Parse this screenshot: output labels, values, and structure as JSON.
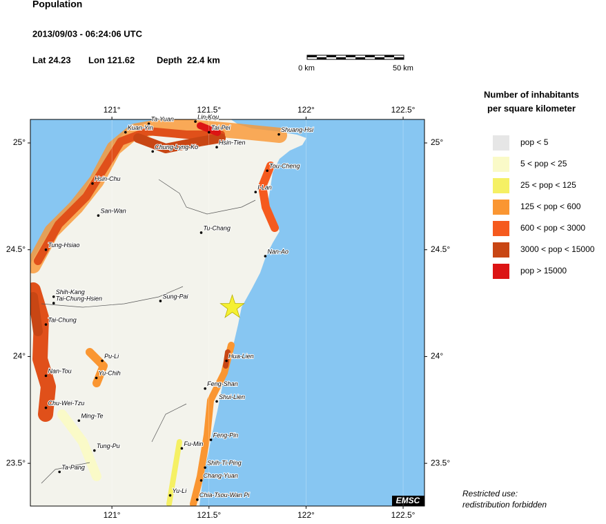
{
  "header": {
    "title": "Population",
    "datetime": "2013/09/03 - 06:24:06 UTC",
    "lat": "Lat 24.23",
    "lon": "Lon 121.62",
    "depth": "Depth  22.4 km"
  },
  "scale_bar": {
    "start": "0 km",
    "end": "50 km"
  },
  "map": {
    "xlim": [
      120.58,
      122.61
    ],
    "ylim": [
      23.3,
      25.11
    ],
    "xticks": [
      {
        "value": 121,
        "label": "121°"
      },
      {
        "value": 121.5,
        "label": "121.5°"
      },
      {
        "value": 122,
        "label": "122°"
      },
      {
        "value": 122.5,
        "label": "122.5°"
      }
    ],
    "yticks": [
      {
        "value": 23.5,
        "label": "23.5°"
      },
      {
        "value": 24,
        "label": "24°"
      },
      {
        "value": 24.5,
        "label": "24.5°"
      },
      {
        "value": 25,
        "label": "25°"
      }
    ],
    "epicenter": {
      "lon": 121.62,
      "lat": 24.23,
      "color": "#f5f032"
    },
    "cities": [
      {
        "name": "Ta-Yuan",
        "lon": 121.19,
        "lat": 25.09
      },
      {
        "name": "Lin-Kou",
        "lon": 121.43,
        "lat": 25.1
      },
      {
        "name": "Kuan-Yin",
        "lon": 121.07,
        "lat": 25.05
      },
      {
        "name": "Tai-Pei",
        "lon": 121.5,
        "lat": 25.05
      },
      {
        "name": "Shuang-Hsi",
        "lon": 121.86,
        "lat": 25.04
      },
      {
        "name": "Chung-Lyng-Ko",
        "lon": 121.21,
        "lat": 24.96
      },
      {
        "name": "Hsin-Tien",
        "lon": 121.54,
        "lat": 24.98
      },
      {
        "name": "Tou-Cheng",
        "lon": 121.8,
        "lat": 24.87
      },
      {
        "name": "Hsin-Chu",
        "lon": 120.9,
        "lat": 24.81
      },
      {
        "name": "I-Lan",
        "lon": 121.74,
        "lat": 24.77
      },
      {
        "name": "San-Wan",
        "lon": 120.93,
        "lat": 24.66
      },
      {
        "name": "Tu-Chang",
        "lon": 121.46,
        "lat": 24.58
      },
      {
        "name": "Tung-Hsiao",
        "lon": 120.66,
        "lat": 24.5
      },
      {
        "name": "Nan-Ao",
        "lon": 121.79,
        "lat": 24.47
      },
      {
        "name": "Shih-Kang",
        "lon": 120.7,
        "lat": 24.28
      },
      {
        "name": "Tai-Chung-Hsien",
        "lon": 120.7,
        "lat": 24.25
      },
      {
        "name": "Sung-Pai",
        "lon": 121.25,
        "lat": 24.26
      },
      {
        "name": "Tai-Chung",
        "lon": 120.66,
        "lat": 24.15
      },
      {
        "name": "Pu-Li",
        "lon": 120.95,
        "lat": 23.98
      },
      {
        "name": "Hua-Lien",
        "lon": 121.59,
        "lat": 23.98
      },
      {
        "name": "Nan-Tou",
        "lon": 120.66,
        "lat": 23.91
      },
      {
        "name": "Yu-Chih",
        "lon": 120.92,
        "lat": 23.9
      },
      {
        "name": "Feng-Shan",
        "lon": 121.48,
        "lat": 23.85
      },
      {
        "name": "Shui-Lien",
        "lon": 121.54,
        "lat": 23.79
      },
      {
        "name": "Chu-Wei-Tzu",
        "lon": 120.66,
        "lat": 23.76
      },
      {
        "name": "Ming-Te",
        "lon": 120.83,
        "lat": 23.7
      },
      {
        "name": "Feng-Pin",
        "lon": 121.51,
        "lat": 23.61
      },
      {
        "name": "Tung-Pu",
        "lon": 120.91,
        "lat": 23.56
      },
      {
        "name": "Fu-Min",
        "lon": 121.36,
        "lat": 23.57
      },
      {
        "name": "Shih-Ti-Ping",
        "lon": 121.48,
        "lat": 23.48
      },
      {
        "name": "Ta-Pang",
        "lon": 120.73,
        "lat": 23.46
      },
      {
        "name": "Chang-Yuan",
        "lon": 121.46,
        "lat": 23.42
      },
      {
        "name": "Yu-Li",
        "lon": 121.3,
        "lat": 23.35
      },
      {
        "name": "Chia-Tsou-Wan Pi",
        "lon": 121.44,
        "lat": 23.33
      }
    ],
    "badge": "EMSC"
  },
  "legend": {
    "title_line1": "Number of inhabitants",
    "title_line2": "per square kilometer",
    "items": [
      {
        "label": "pop < 5",
        "color": "#e6e6e6"
      },
      {
        "label": "5 < pop < 25",
        "color": "#fafac8"
      },
      {
        "label": "25 < pop < 125",
        "color": "#f5f064"
      },
      {
        "label": "125 < pop < 600",
        "color": "#fa9632"
      },
      {
        "label": "600 < pop < 3000",
        "color": "#f55a1e"
      },
      {
        "label": "3000 < pop < 15000",
        "color": "#c84614"
      },
      {
        "label": "pop > 15000",
        "color": "#dc1414"
      }
    ]
  },
  "footer": {
    "line1": "Restricted use:",
    "line2": "redistribution forbidden"
  }
}
